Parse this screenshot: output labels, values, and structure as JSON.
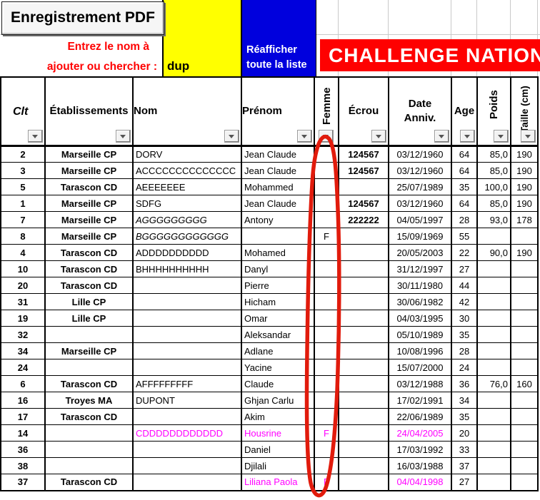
{
  "topbar": {
    "pdf_button": "Enregistrement PDF",
    "search_label_line1": "Entrez le nom à",
    "search_label_line2": "ajouter ou chercher :",
    "search_value": "dup",
    "refresh_button_line1": "Réafficher",
    "refresh_button_line2": "toute la liste",
    "banner": "CHALLENGE NATION"
  },
  "colors": {
    "search_cell_bg": "#ffff00",
    "refresh_button_bg": "#0000dd",
    "banner_bg": "#fe0101",
    "label_red": "#ff0000",
    "magenta_text": "#ff00ff",
    "annotation_red": "#e11b0c"
  },
  "icons": {
    "filter_dropdown": "down-arrow"
  },
  "table": {
    "headers": {
      "clt": "Clt",
      "etab": "Établissements",
      "nom": "Nom",
      "prenom": "Prénom",
      "femme": "Femme",
      "ecrou": "Écrou",
      "date_line1": "Date",
      "date_line2": "Anniv.",
      "age": "Age",
      "poids": "Poids",
      "taille": "Taille (cm)"
    },
    "rows": [
      {
        "clt": "2",
        "etab": "Marseille CP",
        "nom": "DORV",
        "prenom": "Jean Claude",
        "femme": "",
        "ecrou": "124567",
        "date": "03/12/1960",
        "age": "64",
        "poids": "85,0",
        "taille": "190"
      },
      {
        "clt": "3",
        "etab": "Marseille CP",
        "nom": "ACCCCCCCCCCCCCC",
        "prenom": "Jean Claude",
        "femme": "",
        "ecrou": "124567",
        "date": "03/12/1960",
        "age": "64",
        "poids": "85,0",
        "taille": "190"
      },
      {
        "clt": "5",
        "etab": "Tarascon CD",
        "nom": "AEEEEEEE",
        "prenom": "Mohammed",
        "femme": "",
        "ecrou": "",
        "date": "25/07/1989",
        "age": "35",
        "poids": "100,0",
        "taille": "190"
      },
      {
        "clt": "1",
        "etab": "Marseille CP",
        "nom": "SDFG",
        "prenom": "Jean Claude",
        "femme": "",
        "ecrou": "124567",
        "date": "03/12/1960",
        "age": "64",
        "poids": "85,0",
        "taille": "190"
      },
      {
        "clt": "7",
        "etab": "Marseille CP",
        "nom": "AGGGGGGGGG",
        "prenom": "Antony",
        "femme": "",
        "ecrou": "222222",
        "date": "04/05/1997",
        "age": "28",
        "poids": "93,0",
        "taille": "178",
        "italic": [
          "nom"
        ]
      },
      {
        "clt": "8",
        "etab": "Marseille CP",
        "nom": "BGGGGGGGGGGGG",
        "prenom": "",
        "femme": "F",
        "ecrou": "",
        "date": "15/09/1969",
        "age": "55",
        "poids": "",
        "taille": "",
        "italic": [
          "nom"
        ]
      },
      {
        "clt": "4",
        "etab": "Tarascon CD",
        "nom": "ADDDDDDDDDD",
        "prenom": "Mohamed",
        "femme": "",
        "ecrou": "",
        "date": "20/05/2003",
        "age": "22",
        "poids": "90,0",
        "taille": "190"
      },
      {
        "clt": "10",
        "etab": "Tarascon CD",
        "nom": "BHHHHHHHHHH",
        "prenom": "Danyl",
        "femme": "",
        "ecrou": "",
        "date": "31/12/1997",
        "age": "27",
        "poids": "",
        "taille": ""
      },
      {
        "clt": "20",
        "etab": "Tarascon CD",
        "nom": "",
        "prenom": "Pierre",
        "femme": "",
        "ecrou": "",
        "date": "30/11/1980",
        "age": "44",
        "poids": "",
        "taille": ""
      },
      {
        "clt": "31",
        "etab": "Lille CP",
        "nom": "",
        "prenom": "Hicham",
        "femme": "",
        "ecrou": "",
        "date": "30/06/1982",
        "age": "42",
        "poids": "",
        "taille": ""
      },
      {
        "clt": "19",
        "etab": "Lille CP",
        "nom": "",
        "prenom": "Omar",
        "femme": "",
        "ecrou": "",
        "date": "04/03/1995",
        "age": "30",
        "poids": "",
        "taille": ""
      },
      {
        "clt": "32",
        "etab": "",
        "nom": "",
        "prenom": "Aleksandar",
        "femme": "",
        "ecrou": "",
        "date": "05/10/1989",
        "age": "35",
        "poids": "",
        "taille": ""
      },
      {
        "clt": "34",
        "etab": "Marseille CP",
        "nom": "",
        "prenom": "Adlane",
        "femme": "",
        "ecrou": "",
        "date": "10/08/1996",
        "age": "28",
        "poids": "",
        "taille": ""
      },
      {
        "clt": "24",
        "etab": "",
        "nom": "",
        "prenom": "Yacine",
        "femme": "",
        "ecrou": "",
        "date": "15/07/2000",
        "age": "24",
        "poids": "",
        "taille": ""
      },
      {
        "clt": "6",
        "etab": "Tarascon CD",
        "nom": "AFFFFFFFFF",
        "prenom": "Claude",
        "femme": "",
        "ecrou": "",
        "date": "03/12/1988",
        "age": "36",
        "poids": "76,0",
        "taille": "160"
      },
      {
        "clt": "16",
        "etab": "Troyes MA",
        "nom": "DUPONT",
        "prenom": "Ghjan Carlu",
        "femme": "",
        "ecrou": "",
        "date": "17/02/1991",
        "age": "34",
        "poids": "",
        "taille": ""
      },
      {
        "clt": "17",
        "etab": "Tarascon CD",
        "nom": "",
        "prenom": "Akim",
        "femme": "",
        "ecrou": "",
        "date": "22/06/1989",
        "age": "35",
        "poids": "",
        "taille": ""
      },
      {
        "clt": "14",
        "etab": "",
        "nom": "CDDDDDDDDDDDD",
        "prenom": "Housrine",
        "femme": "F",
        "ecrou": "",
        "date": "24/04/2005",
        "age": "20",
        "poids": "",
        "taille": "",
        "magenta": [
          "nom",
          "prenom",
          "femme",
          "date"
        ]
      },
      {
        "clt": "36",
        "etab": "",
        "nom": "",
        "prenom": "Daniel",
        "femme": "",
        "ecrou": "",
        "date": "17/03/1992",
        "age": "33",
        "poids": "",
        "taille": ""
      },
      {
        "clt": "38",
        "etab": "",
        "nom": "",
        "prenom": "Djilali",
        "femme": "",
        "ecrou": "",
        "date": "16/03/1988",
        "age": "37",
        "poids": "",
        "taille": ""
      },
      {
        "clt": "37",
        "etab": "Tarascon CD",
        "nom": "",
        "prenom": "Liliana Paola",
        "femme": "F",
        "ecrou": "",
        "date": "04/04/1998",
        "age": "27",
        "poids": "",
        "taille": "",
        "magenta": [
          "prenom",
          "femme",
          "date"
        ]
      }
    ]
  },
  "annotation": {
    "type": "hand-drawn-ellipse",
    "target": "femme-column"
  }
}
